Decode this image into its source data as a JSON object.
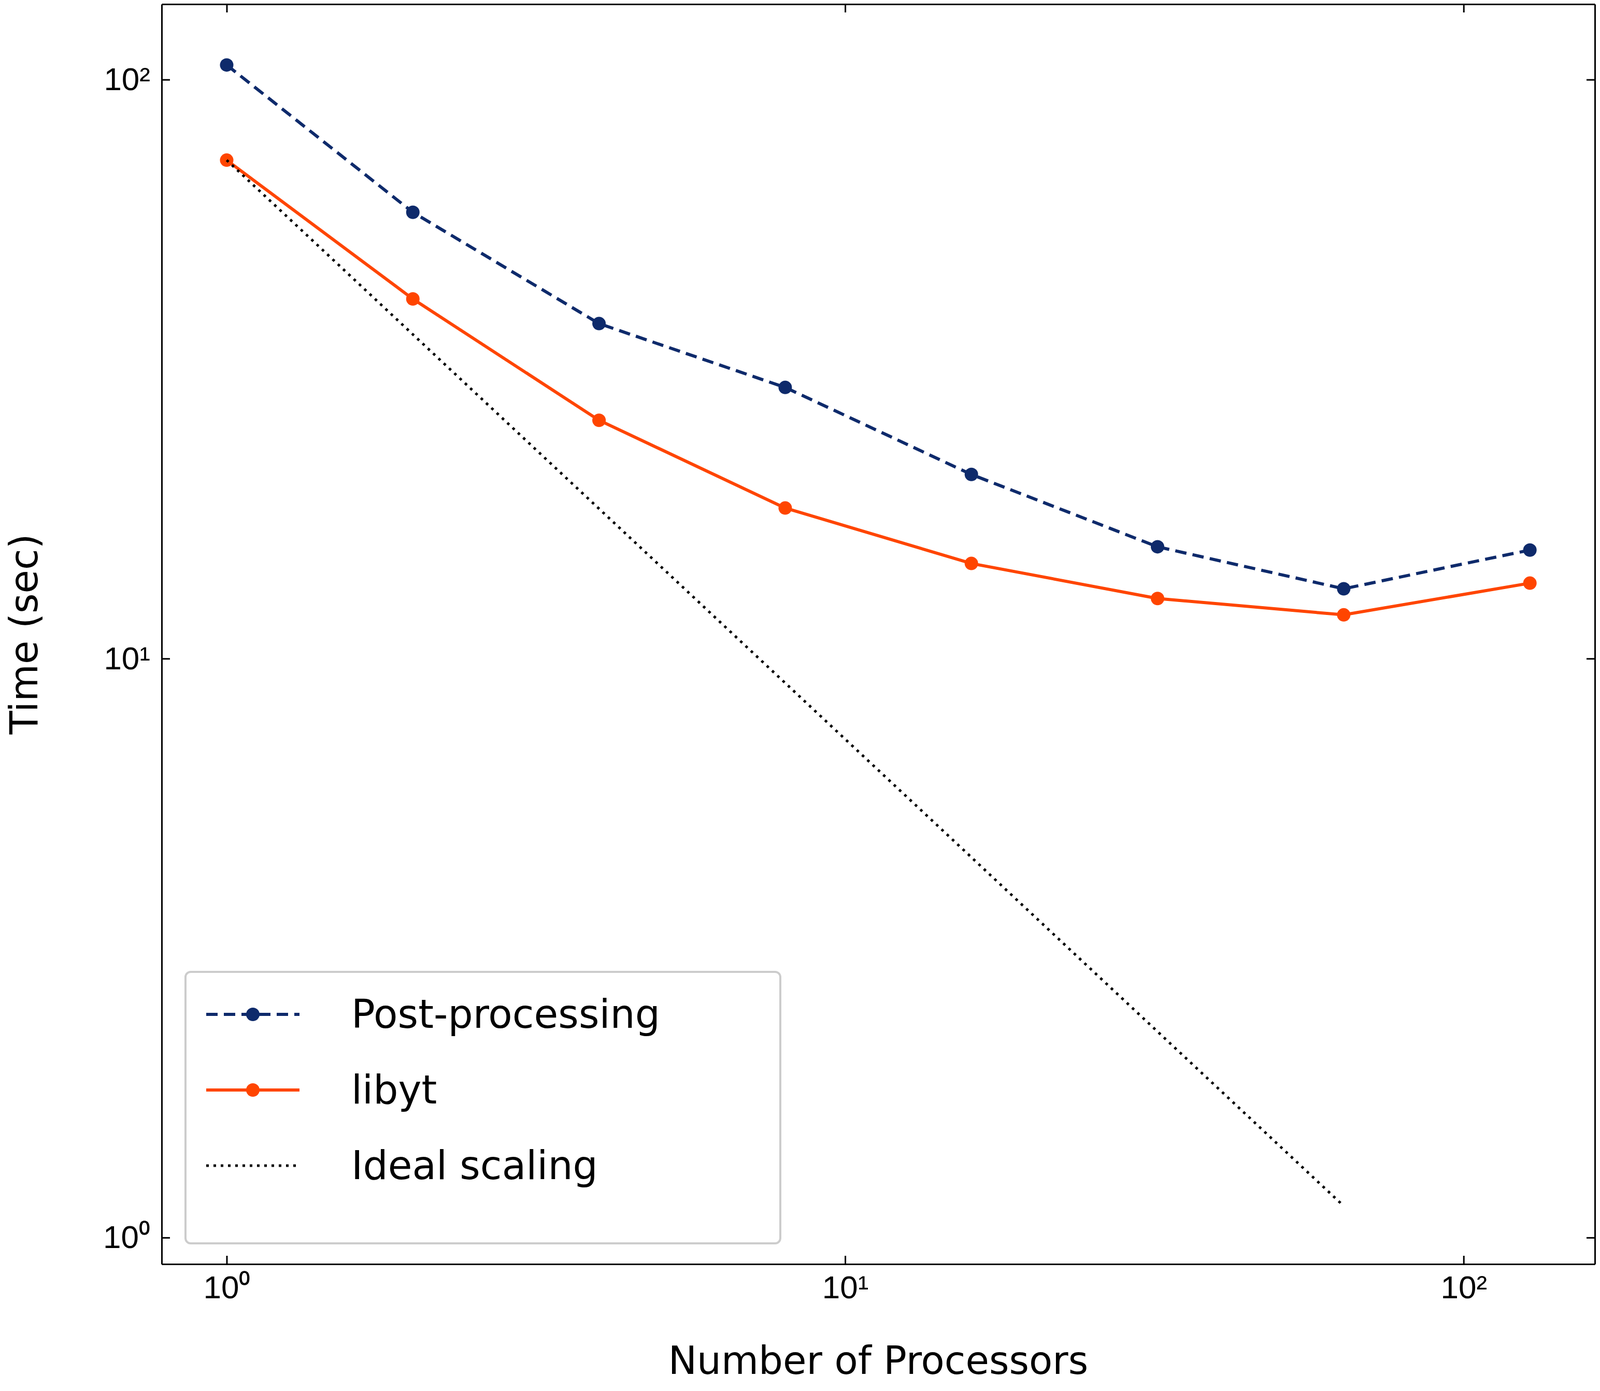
{
  "chart_data": {
    "type": "line",
    "xlabel": "Number of Processors",
    "ylabel": "Time (sec)",
    "log": true,
    "legend": "lower left",
    "x": [
      1,
      2,
      4,
      8,
      16,
      32,
      64,
      128
    ],
    "xlim": [
      0.785,
      163
    ],
    "ylim": [
      0.9,
      135
    ],
    "xticks": [
      {
        "value": 1,
        "label": "10⁰"
      },
      {
        "value": 10,
        "label": "10¹"
      },
      {
        "value": 100,
        "label": "10²"
      }
    ],
    "yticks": [
      {
        "value": 1,
        "label": "10⁰"
      },
      {
        "value": 10,
        "label": "10¹"
      },
      {
        "value": 100,
        "label": "10²"
      }
    ],
    "series": [
      {
        "name": "Post-processing",
        "color": "#0e2a6b",
        "line_style": "dashed",
        "marker": "circle",
        "values": [
          106,
          59,
          37.9,
          29.4,
          20.8,
          15.6,
          13.2,
          15.4
        ]
      },
      {
        "name": "libyt",
        "color": "#ff4500",
        "line_style": "solid",
        "marker": "circle",
        "values": [
          72.6,
          41.8,
          25.8,
          18.2,
          14.6,
          12.7,
          11.9,
          13.5
        ]
      },
      {
        "name": "Ideal scaling",
        "color": "#000000",
        "line_style": "dotted",
        "marker": "none",
        "values": [
          72.6,
          36.3,
          18.15,
          9.075,
          4.5375,
          2.26875,
          1.134,
          null
        ]
      }
    ]
  }
}
